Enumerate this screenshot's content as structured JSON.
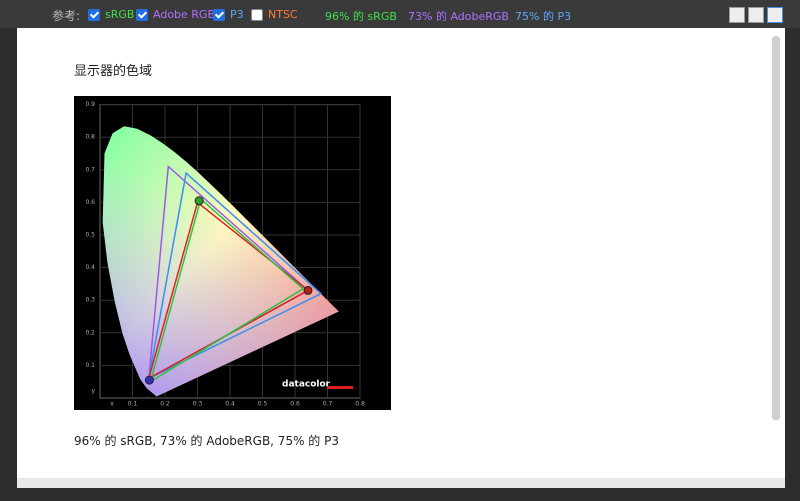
{
  "toolbar": {
    "label": "参考:",
    "options": [
      {
        "label": "sRGB",
        "checked": true
      },
      {
        "label": "Adobe RGB",
        "checked": true
      },
      {
        "label": "P3",
        "checked": true
      },
      {
        "label": "NTSC",
        "checked": false
      }
    ],
    "stats": [
      "96% 的 sRGB",
      "73% 的 AdobeRGB",
      "75% 的 P3"
    ]
  },
  "content": {
    "title": "显示器的色域",
    "caption": "96% 的 sRGB, 73% 的 AdobeRGB, 75% 的 P3",
    "figure": {
      "xticks": [
        "0.1",
        "0.2",
        "0.3",
        "0.4",
        "0.5",
        "0.6",
        "0.7",
        "0.8"
      ],
      "yticks": [
        "0.1",
        "0.2",
        "0.3",
        "0.4",
        "0.5",
        "0.6",
        "0.7",
        "0.8",
        "0.9"
      ],
      "x_label": "x",
      "y_label": "y",
      "logo": "datacolor"
    }
  }
}
